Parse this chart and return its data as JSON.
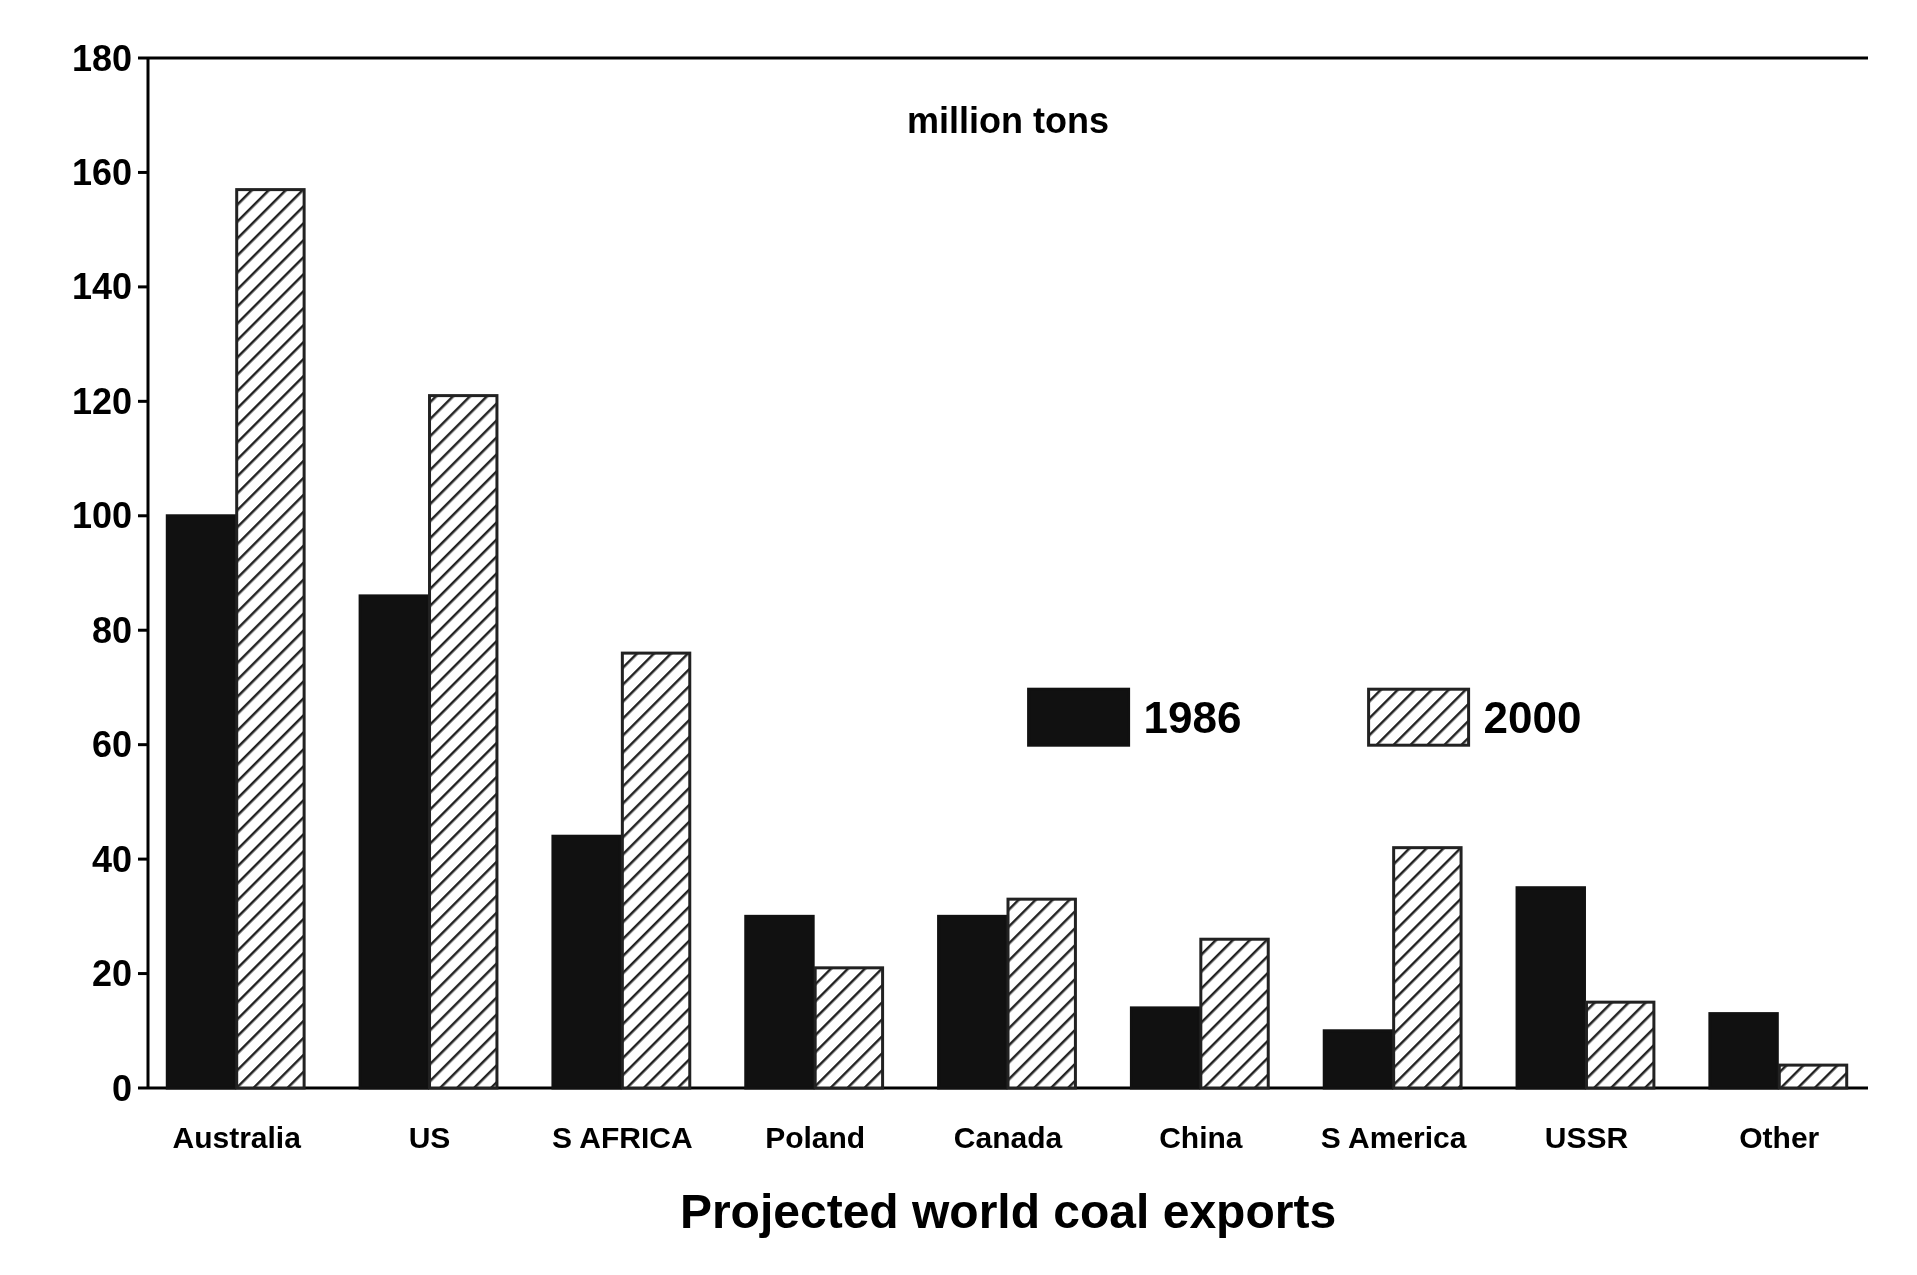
{
  "chart_data": {
    "type": "bar",
    "title": "Projected world coal exports",
    "ylabel": "million tons",
    "categories": [
      "Australia",
      "US",
      "S AFRICA",
      "Poland",
      "Canada",
      "China",
      "S America",
      "USSR",
      "Other"
    ],
    "series": [
      {
        "name": "1986",
        "color": "#111111",
        "values": [
          100,
          86,
          44,
          30,
          30,
          14,
          10,
          35,
          13
        ]
      },
      {
        "name": "2000",
        "color": "#222222",
        "values": [
          157,
          121,
          76,
          21,
          33,
          26,
          42,
          15,
          4
        ]
      }
    ],
    "ylim": [
      0,
      180
    ],
    "yticks": [
      0,
      20,
      40,
      60,
      80,
      100,
      120,
      140,
      160,
      180
    ],
    "legend": "right",
    "grid": false
  }
}
